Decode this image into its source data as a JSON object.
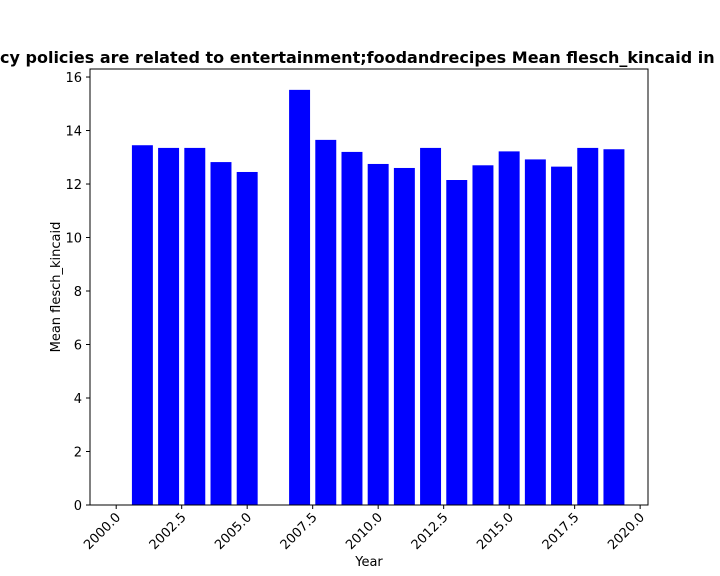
{
  "chart_data": {
    "type": "bar",
    "title": "Websites whose privacy policies are related to entertainment;foodandrecipes Mean flesch_kincaid in privacy policies by Year",
    "xlabel": "Year",
    "ylabel": "Mean flesch_kincaid",
    "xlim": [
      1999.0,
      2020.3
    ],
    "ylim": [
      0,
      16.3
    ],
    "x": [
      2001,
      2002,
      2003,
      2004,
      2005,
      2007,
      2008,
      2009,
      2010,
      2011,
      2012,
      2013,
      2014,
      2015,
      2016,
      2017,
      2018,
      2019
    ],
    "values": [
      13.45,
      13.35,
      13.35,
      12.82,
      12.45,
      15.52,
      13.65,
      13.2,
      12.75,
      12.6,
      13.35,
      12.15,
      12.7,
      13.22,
      12.92,
      12.65,
      13.35,
      13.3
    ],
    "xticks": [
      "2000.0",
      "2002.5",
      "2005.0",
      "2007.5",
      "2010.0",
      "2012.5",
      "2015.0",
      "2017.5",
      "2020.0"
    ],
    "xtick_values": [
      2000,
      2002.5,
      2005,
      2007.5,
      2010,
      2012.5,
      2015,
      2017.5,
      2020
    ],
    "yticks": [
      "0",
      "2",
      "4",
      "6",
      "8",
      "10",
      "12",
      "14",
      "16"
    ],
    "ytick_values": [
      0,
      2,
      4,
      6,
      8,
      10,
      12,
      14,
      16
    ],
    "bar_width": 0.8,
    "bar_color": "#0000ff",
    "grid": false,
    "legend": "none"
  }
}
